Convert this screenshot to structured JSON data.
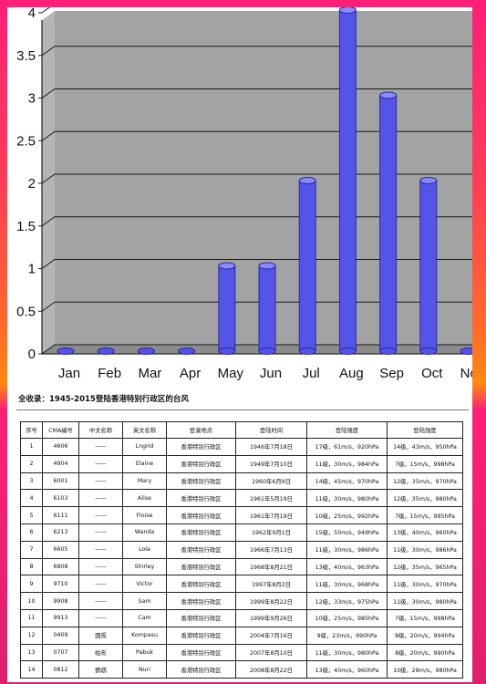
{
  "chart_data": {
    "type": "bar",
    "categories": [
      "Jan",
      "Feb",
      "Mar",
      "Apr",
      "May",
      "Jun",
      "Jul",
      "Aug",
      "Sep",
      "Oct",
      "Nov"
    ],
    "values": [
      0,
      0,
      0,
      0,
      1,
      1,
      2,
      4,
      3,
      2,
      0
    ],
    "yticks": [
      "0",
      "0.5",
      "1",
      "1.5",
      "2",
      "2.5",
      "3",
      "3.5",
      "4"
    ],
    "ylim": [
      0,
      4
    ],
    "grid": true,
    "title": "",
    "xlabel": "",
    "ylabel": "",
    "colors": {
      "bar": "#5454e8",
      "bar_top": "#8a8aff",
      "plot_bg": "#a3a3a3",
      "floor": "#8c8c8c"
    }
  },
  "table": {
    "title": "全收录：1945-2015登陆香港特别行政区的台风",
    "headers": [
      "序号",
      "CMA编号",
      "中文名称",
      "英文名称",
      "登录地点",
      "登陆时间",
      "登陆强度",
      "登陆强度"
    ],
    "rows": [
      [
        "1",
        "4606",
        "——",
        "Lngrid",
        "香港特别行政区",
        "1946年7月18日",
        "17级，61m/s，920hPa",
        "14级，43m/s，950hPa"
      ],
      [
        "2",
        "4904",
        "——",
        "Elaine",
        "香港特别行政区",
        "1949年7月10日",
        "11级，30m/s，984hPa",
        "7级，15m/s，998hPa"
      ],
      [
        "3",
        "6001",
        "——",
        "Mary",
        "香港特别行政区",
        "1960年6月9日",
        "14级，45m/s，970hPa",
        "12级，35m/s，970hPa"
      ],
      [
        "4",
        "6103",
        "——",
        "Alise",
        "香港特别行政区",
        "1961年5月19日",
        "11级，30m/s，980hPa",
        "12级，35m/s，980hPa"
      ],
      [
        "5",
        "6111",
        "——",
        "Floise",
        "香港特别行政区",
        "1961年7月19日",
        "10级，25m/s，992hPa",
        "7级，15m/s，995hPa"
      ],
      [
        "6",
        "6213",
        "——",
        "Wanda",
        "香港特别行政区",
        "1962年9月1日",
        "15级，50m/s，949hPa",
        "13级，40m/s，960hPa"
      ],
      [
        "7",
        "6605",
        "——",
        "Lola",
        "香港特别行政区",
        "1966年7月13日",
        "11级，30m/s，986hPa",
        "11级，30m/s，986hPa"
      ],
      [
        "8",
        "6808",
        "——",
        "Shirley",
        "香港特别行政区",
        "1968年8月21日",
        "13级，40m/s，963hPa",
        "12级，35m/s，965hPa"
      ],
      [
        "9",
        "9710",
        "——",
        "Victor",
        "香港特别行政区",
        "1997年8月2日",
        "11级，30m/s，968hPa",
        "11级，30m/s，970hPa"
      ],
      [
        "10",
        "9908",
        "——",
        "Sam",
        "香港特别行政区",
        "1999年8月22日",
        "12级，33m/s，975hPa",
        "11级，30m/s，980hPa"
      ],
      [
        "11",
        "9913",
        "——",
        "Cam",
        "香港特别行政区",
        "1999年9月26日",
        "10级，25m/s，985hPa",
        "7级，15m/s，998hPa"
      ],
      [
        "12",
        "0409",
        "圆规",
        "Kompasu",
        "香港特别行政区",
        "2004年7月16日",
        "9级，23m/s，990hPa",
        "8级，20m/s，994hPa"
      ],
      [
        "13",
        "0707",
        "帕布",
        "Pabuk",
        "香港特别行政区",
        "2007年8月10日",
        "11级，30m/s，980hPa",
        "8级，20m/s，990hPa"
      ],
      [
        "14",
        "0812",
        "鹦鹉",
        "Nuri",
        "香港特别行政区",
        "2008年8月22日",
        "13级，40m/s，960hPa",
        "10级，28m/s，980hPa"
      ]
    ]
  }
}
